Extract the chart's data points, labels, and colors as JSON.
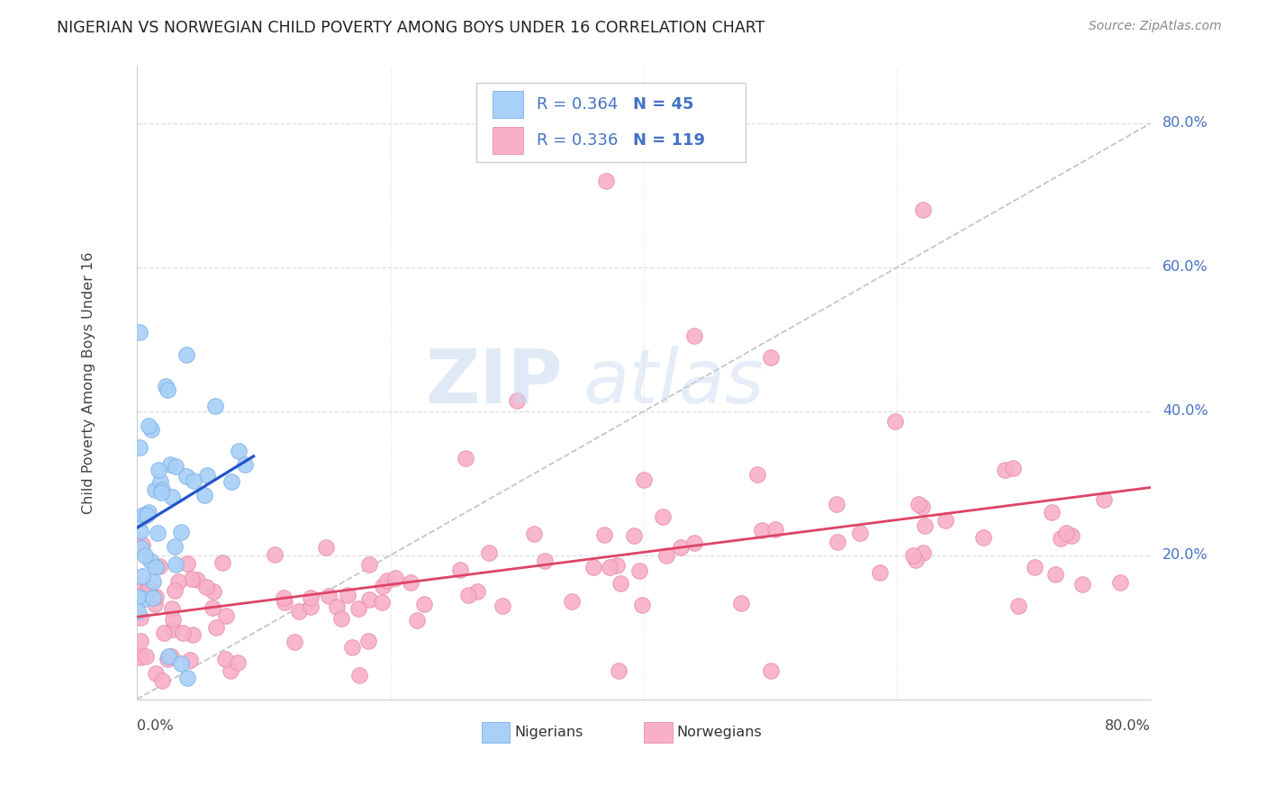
{
  "title": "NIGERIAN VS NORWEGIAN CHILD POVERTY AMONG BOYS UNDER 16 CORRELATION CHART",
  "source": "Source: ZipAtlas.com",
  "ylabel": "Child Poverty Among Boys Under 16",
  "right_yticks": [
    "80.0%",
    "60.0%",
    "40.0%",
    "20.0%"
  ],
  "right_ytick_vals": [
    0.8,
    0.6,
    0.4,
    0.2
  ],
  "xlim": [
    0.0,
    0.8
  ],
  "ylim": [
    0.0,
    0.88
  ],
  "legend_blue_R": "0.364",
  "legend_blue_N": "45",
  "legend_pink_R": "0.336",
  "legend_pink_N": "119",
  "blue_scatter_color": "#A8D0F8",
  "blue_edge_color": "#7EB0E8",
  "pink_scatter_color": "#F8B0C8",
  "pink_edge_color": "#E890A8",
  "blue_line_color": "#2255CC",
  "pink_line_color": "#DD4466",
  "legend_text_color": "#4472C4",
  "diag_color": "#BBBBBB",
  "grid_color": "#DDDDDD",
  "watermark_zip_color": "#C8D8F0",
  "watermark_atlas_color": "#C8D8F0"
}
